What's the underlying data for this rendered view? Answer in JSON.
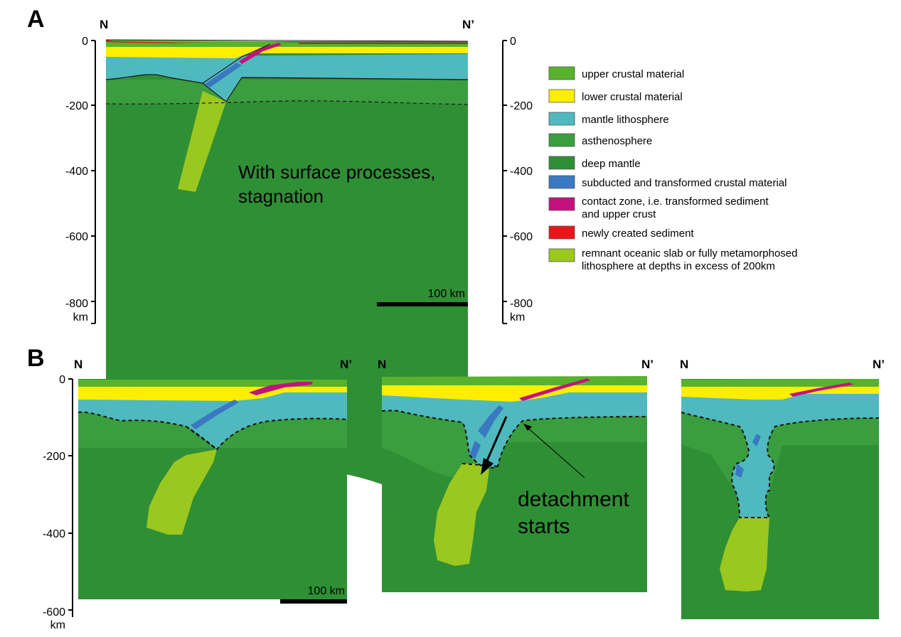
{
  "panel_a": {
    "letter": "A",
    "left_label": "N",
    "right_label": "N’",
    "depth_ticks": [
      "0",
      "-200",
      "-400",
      "-600",
      "-800"
    ],
    "depth_unit": "km",
    "annotation_line1": "With surface processes,",
    "annotation_line2": "stagnation",
    "scale_bar": "100 km"
  },
  "panel_b": {
    "letter": "B",
    "depth_ticks": [
      "0",
      "-200",
      "-400",
      "-600"
    ],
    "depth_unit": "km",
    "scale_bar": "100 km",
    "sub1": {
      "left_label": "N",
      "right_label": "N’"
    },
    "sub2": {
      "left_label": "N",
      "right_label": "N’",
      "annotation_line1": "detachment",
      "annotation_line2": "starts"
    },
    "sub3": {
      "left_label": "N",
      "right_label": "N’"
    }
  },
  "legend": {
    "items": [
      {
        "color": "#58b22e",
        "label": "upper crustal material"
      },
      {
        "color": "#ffee00",
        "label": "lower crustal material"
      },
      {
        "color": "#4fb9bf",
        "label": "mantle lithosphere"
      },
      {
        "color": "#3a9d3e",
        "label": "asthenosphere"
      },
      {
        "color": "#2f8f35",
        "label": "deep mantle"
      },
      {
        "color": "#3a78c2",
        "label": "subducted and transformed crustal material"
      },
      {
        "color": "#c4117f",
        "label": "contact zone, i.e. transformed sediment",
        "label2": "and upper crust"
      },
      {
        "color": "#e8161b",
        "label": "newly created sediment"
      },
      {
        "color": "#9bc81e",
        "label": "remnant oceanic slab or fully metamorphosed",
        "label2": "lithosphere at depths in excess of 200km"
      }
    ]
  },
  "colors": {
    "upper_crust": "#58b22e",
    "lower_crust": "#ffee00",
    "mantle_lithosphere": "#4fb9bf",
    "asthenosphere": "#3a9d3e",
    "deep_mantle": "#2f8f35",
    "subducted": "#3a78c2",
    "contact_zone": "#c4117f",
    "sediment": "#e8161b",
    "slab": "#9bc81e"
  }
}
